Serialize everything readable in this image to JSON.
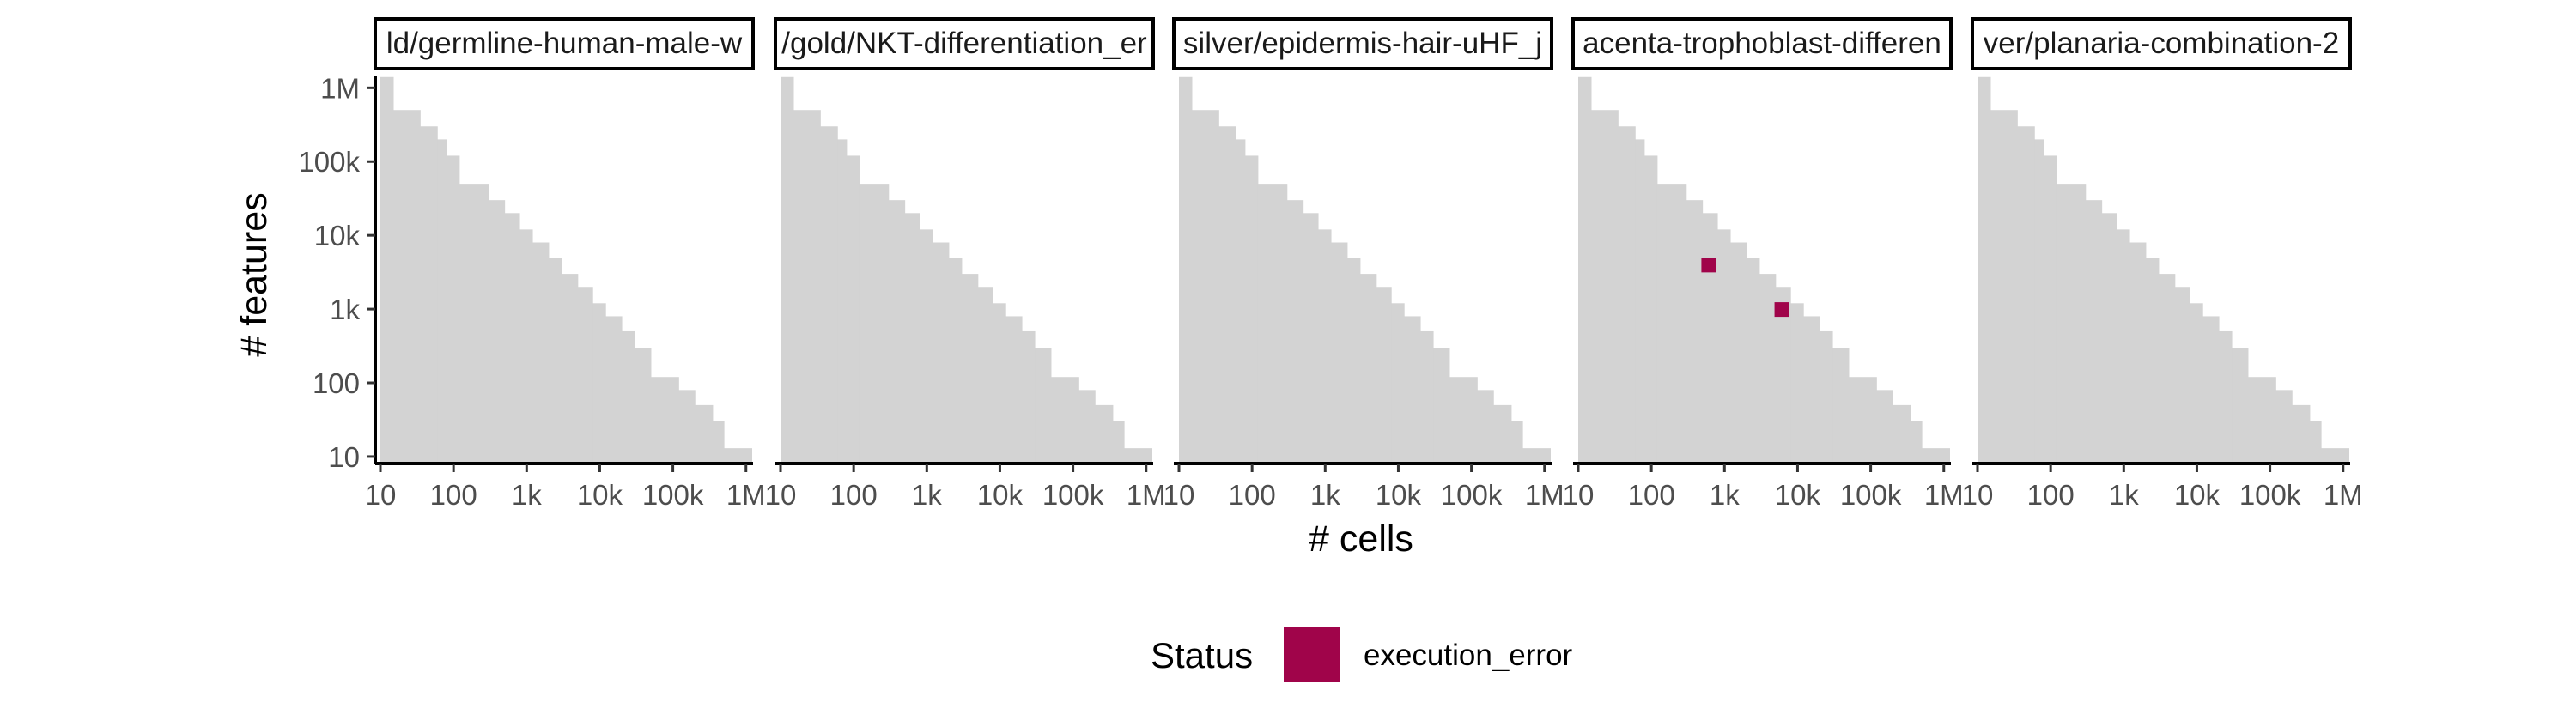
{
  "chart_data": {
    "type": "heatmap",
    "scale": "log10",
    "xlabel": "# cells",
    "ylabel": "# features",
    "x_ticks": [
      {
        "value": 10,
        "label": "10"
      },
      {
        "value": 100,
        "label": "100"
      },
      {
        "value": 1000,
        "label": "1k"
      },
      {
        "value": 10000,
        "label": "10k"
      },
      {
        "value": 100000,
        "label": "100k"
      },
      {
        "value": 1000000,
        "label": "1M"
      }
    ],
    "y_ticks": [
      {
        "value": 10,
        "label": "10"
      },
      {
        "value": 100,
        "label": "100"
      },
      {
        "value": 1000,
        "label": "1k"
      },
      {
        "value": 10000,
        "label": "10k"
      },
      {
        "value": 100000,
        "label": "100k"
      },
      {
        "value": 1000000,
        "label": "1M"
      }
    ],
    "xlim": [
      8.5,
      1250000
    ],
    "ylim": [
      8.5,
      1250000
    ],
    "feasible_region": {
      "description": "grey step region of tested cell/feature combinations",
      "color": "#d3d3d3",
      "steps": [
        {
          "cells": [
            10,
            15
          ],
          "features_max": 1400000
        },
        {
          "cells": [
            15,
            35
          ],
          "features_max": 500000
        },
        {
          "cells": [
            35,
            60
          ],
          "features_max": 300000
        },
        {
          "cells": [
            60,
            80
          ],
          "features_max": 200000
        },
        {
          "cells": [
            80,
            120
          ],
          "features_max": 120000
        },
        {
          "cells": [
            120,
            300
          ],
          "features_max": 50000
        },
        {
          "cells": [
            300,
            500
          ],
          "features_max": 30000
        },
        {
          "cells": [
            500,
            800
          ],
          "features_max": 20000
        },
        {
          "cells": [
            800,
            1200
          ],
          "features_max": 12000
        },
        {
          "cells": [
            1200,
            2000
          ],
          "features_max": 8000
        },
        {
          "cells": [
            2000,
            3000
          ],
          "features_max": 5000
        },
        {
          "cells": [
            3000,
            5000
          ],
          "features_max": 3000
        },
        {
          "cells": [
            5000,
            8000
          ],
          "features_max": 2000
        },
        {
          "cells": [
            8000,
            12000
          ],
          "features_max": 1200
        },
        {
          "cells": [
            12000,
            20000
          ],
          "features_max": 800
        },
        {
          "cells": [
            20000,
            30000
          ],
          "features_max": 500
        },
        {
          "cells": [
            30000,
            50000
          ],
          "features_max": 300
        },
        {
          "cells": [
            50000,
            120000
          ],
          "features_max": 120
        },
        {
          "cells": [
            120000,
            200000
          ],
          "features_max": 80
        },
        {
          "cells": [
            200000,
            350000
          ],
          "features_max": 50
        },
        {
          "cells": [
            350000,
            500000
          ],
          "features_max": 30
        },
        {
          "cells": [
            500000,
            1200000
          ],
          "features_max": 13
        }
      ]
    },
    "panels": [
      {
        "label": "ld/germline-human-male-w",
        "errors": []
      },
      {
        "label": "/gold/NKT-differentiation_er",
        "errors": []
      },
      {
        "label": "silver/epidermis-hair-uHF_j",
        "errors": []
      },
      {
        "label": "acenta-trophoblast-differen",
        "errors": [
          {
            "cells": 600,
            "features": 4000,
            "status": "execution_error"
          },
          {
            "cells": 6000,
            "features": 1000,
            "status": "execution_error"
          }
        ]
      },
      {
        "label": "ver/planaria-combination-2",
        "errors": []
      }
    ],
    "legend": {
      "title": "Status",
      "position": "bottom",
      "items": [
        {
          "label": "execution_error",
          "color": "#a0044a"
        }
      ]
    }
  }
}
